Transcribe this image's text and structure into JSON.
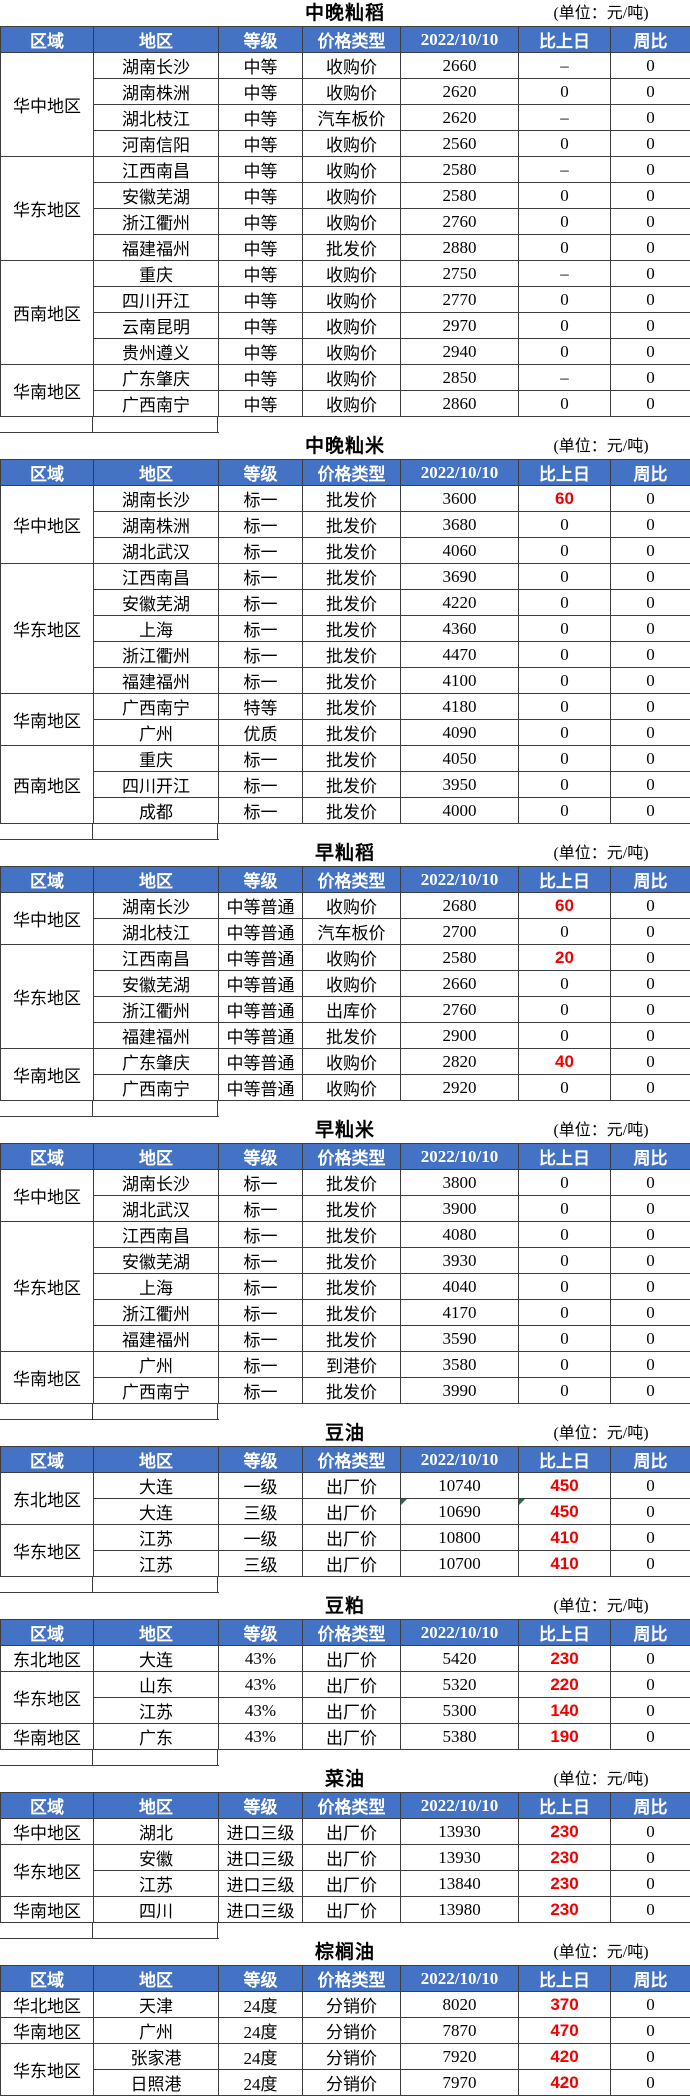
{
  "unit_label": "(单位：元/吨)",
  "columns": [
    "区域",
    "地区",
    "等级",
    "价格类型",
    "2022/10/10",
    "比上日",
    "周比"
  ],
  "colors": {
    "header_bg": "#4472C4",
    "header_text": "#FFFFFF",
    "change_up_red": "#F00000",
    "comment_marker_green": "#217346",
    "grid_border": "#3D3D3D"
  },
  "tables": [
    {
      "title": "中晚籼稻",
      "groups": [
        {
          "region": "华中地区",
          "rows": [
            {
              "area": "湖南长沙",
              "grade": "中等",
              "price_type": "收购价",
              "price": "2660",
              "chg": "–",
              "week": "0"
            },
            {
              "area": "湖南株洲",
              "grade": "中等",
              "price_type": "收购价",
              "price": "2620",
              "chg": "0",
              "week": "0"
            },
            {
              "area": "湖北枝江",
              "grade": "中等",
              "price_type": "汽车板价",
              "price": "2620",
              "chg": "–",
              "week": "0"
            },
            {
              "area": "河南信阳",
              "grade": "中等",
              "price_type": "收购价",
              "price": "2560",
              "chg": "0",
              "week": "0"
            }
          ]
        },
        {
          "region": "华东地区",
          "rows": [
            {
              "area": "江西南昌",
              "grade": "中等",
              "price_type": "收购价",
              "price": "2580",
              "chg": "–",
              "week": "0"
            },
            {
              "area": "安徽芜湖",
              "grade": "中等",
              "price_type": "收购价",
              "price": "2580",
              "chg": "0",
              "week": "0"
            },
            {
              "area": "浙江衢州",
              "grade": "中等",
              "price_type": "收购价",
              "price": "2760",
              "chg": "0",
              "week": "0"
            },
            {
              "area": "福建福州",
              "grade": "中等",
              "price_type": "批发价",
              "price": "2880",
              "chg": "0",
              "week": "0"
            }
          ]
        },
        {
          "region": "西南地区",
          "rows": [
            {
              "area": "重庆",
              "grade": "中等",
              "price_type": "收购价",
              "price": "2750",
              "chg": "–",
              "week": "0"
            },
            {
              "area": "四川开江",
              "grade": "中等",
              "price_type": "收购价",
              "price": "2770",
              "chg": "0",
              "week": "0"
            },
            {
              "area": "云南昆明",
              "grade": "中等",
              "price_type": "收购价",
              "price": "2970",
              "chg": "0",
              "week": "0"
            },
            {
              "area": "贵州遵义",
              "grade": "中等",
              "price_type": "收购价",
              "price": "2940",
              "chg": "0",
              "week": "0"
            }
          ]
        },
        {
          "region": "华南地区",
          "rows": [
            {
              "area": "广东肇庆",
              "grade": "中等",
              "price_type": "收购价",
              "price": "2850",
              "chg": "–",
              "week": "0"
            },
            {
              "area": "广西南宁",
              "grade": "中等",
              "price_type": "收购价",
              "price": "2860",
              "chg": "0",
              "week": "0"
            }
          ]
        }
      ]
    },
    {
      "title": "中晚籼米",
      "groups": [
        {
          "region": "华中地区",
          "rows": [
            {
              "area": "湖南长沙",
              "grade": "标一",
              "price_type": "批发价",
              "price": "3600",
              "chg": "60",
              "week": "0"
            },
            {
              "area": "湖南株洲",
              "grade": "标一",
              "price_type": "批发价",
              "price": "3680",
              "chg": "0",
              "week": "0"
            },
            {
              "area": "湖北武汉",
              "grade": "标一",
              "price_type": "批发价",
              "price": "4060",
              "chg": "0",
              "week": "0"
            }
          ]
        },
        {
          "region": "华东地区",
          "rows": [
            {
              "area": "江西南昌",
              "grade": "标一",
              "price_type": "批发价",
              "price": "3690",
              "chg": "0",
              "week": "0"
            },
            {
              "area": "安徽芜湖",
              "grade": "标一",
              "price_type": "批发价",
              "price": "4220",
              "chg": "0",
              "week": "0"
            },
            {
              "area": "上海",
              "grade": "标一",
              "price_type": "批发价",
              "price": "4360",
              "chg": "0",
              "week": "0"
            },
            {
              "area": "浙江衢州",
              "grade": "标一",
              "price_type": "批发价",
              "price": "4470",
              "chg": "0",
              "week": "0"
            },
            {
              "area": "福建福州",
              "grade": "标一",
              "price_type": "批发价",
              "price": "4100",
              "chg": "0",
              "week": "0"
            }
          ]
        },
        {
          "region": "华南地区",
          "rows": [
            {
              "area": "广西南宁",
              "grade": "特等",
              "price_type": "批发价",
              "price": "4180",
              "chg": "0",
              "week": "0"
            },
            {
              "area": "广州",
              "grade": "优质",
              "price_type": "批发价",
              "price": "4090",
              "chg": "0",
              "week": "0"
            }
          ]
        },
        {
          "region": "西南地区",
          "rows": [
            {
              "area": "重庆",
              "grade": "标一",
              "price_type": "批发价",
              "price": "4050",
              "chg": "0",
              "week": "0"
            },
            {
              "area": "四川开江",
              "grade": "标一",
              "price_type": "批发价",
              "price": "3950",
              "chg": "0",
              "week": "0"
            },
            {
              "area": "成都",
              "grade": "标一",
              "price_type": "批发价",
              "price": "4000",
              "chg": "0",
              "week": "0"
            }
          ]
        }
      ]
    },
    {
      "title": "早籼稻",
      "groups": [
        {
          "region": "华中地区",
          "rows": [
            {
              "area": "湖南长沙",
              "grade": "中等普通",
              "price_type": "收购价",
              "price": "2680",
              "chg": "60",
              "week": "0"
            },
            {
              "area": "湖北枝江",
              "grade": "中等普通",
              "price_type": "汽车板价",
              "price": "2700",
              "chg": "0",
              "week": "0"
            }
          ]
        },
        {
          "region": "华东地区",
          "rows": [
            {
              "area": "江西南昌",
              "grade": "中等普通",
              "price_type": "收购价",
              "price": "2580",
              "chg": "20",
              "week": "0"
            },
            {
              "area": "安徽芜湖",
              "grade": "中等普通",
              "price_type": "收购价",
              "price": "2660",
              "chg": "0",
              "week": "0"
            },
            {
              "area": "浙江衢州",
              "grade": "中等普通",
              "price_type": "出库价",
              "price": "2760",
              "chg": "0",
              "week": "0"
            },
            {
              "area": "福建福州",
              "grade": "中等普通",
              "price_type": "批发价",
              "price": "2900",
              "chg": "0",
              "week": "0"
            }
          ]
        },
        {
          "region": "华南地区",
          "rows": [
            {
              "area": "广东肇庆",
              "grade": "中等普通",
              "price_type": "收购价",
              "price": "2820",
              "chg": "40",
              "week": "0"
            },
            {
              "area": "广西南宁",
              "grade": "中等普通",
              "price_type": "收购价",
              "price": "2920",
              "chg": "0",
              "week": "0"
            }
          ]
        }
      ]
    },
    {
      "title": "早籼米",
      "groups": [
        {
          "region": "华中地区",
          "rows": [
            {
              "area": "湖南长沙",
              "grade": "标一",
              "price_type": "批发价",
              "price": "3800",
              "chg": "0",
              "week": "0"
            },
            {
              "area": "湖北武汉",
              "grade": "标一",
              "price_type": "批发价",
              "price": "3900",
              "chg": "0",
              "week": "0"
            }
          ]
        },
        {
          "region": "华东地区",
          "rows": [
            {
              "area": "江西南昌",
              "grade": "标一",
              "price_type": "批发价",
              "price": "4080",
              "chg": "0",
              "week": "0"
            },
            {
              "area": "安徽芜湖",
              "grade": "标一",
              "price_type": "批发价",
              "price": "3930",
              "chg": "0",
              "week": "0"
            },
            {
              "area": "上海",
              "grade": "标一",
              "price_type": "批发价",
              "price": "4040",
              "chg": "0",
              "week": "0"
            },
            {
              "area": "浙江衢州",
              "grade": "标一",
              "price_type": "批发价",
              "price": "4170",
              "chg": "0",
              "week": "0"
            },
            {
              "area": "福建福州",
              "grade": "标一",
              "price_type": "批发价",
              "price": "3590",
              "chg": "0",
              "week": "0"
            }
          ]
        },
        {
          "region": "华南地区",
          "rows": [
            {
              "area": "广州",
              "grade": "标一",
              "price_type": "到港价",
              "price": "3580",
              "chg": "0",
              "week": "0"
            },
            {
              "area": "广西南宁",
              "grade": "标一",
              "price_type": "批发价",
              "price": "3990",
              "chg": "0",
              "week": "0"
            }
          ]
        }
      ]
    },
    {
      "title": "豆油",
      "groups": [
        {
          "region": "东北地区",
          "rows": [
            {
              "area": "大连",
              "grade": "一级",
              "price_type": "出厂价",
              "price": "10740",
              "chg": "450",
              "week": "0"
            },
            {
              "area": "大连",
              "grade": "三级",
              "price_type": "出厂价",
              "price": "10690",
              "chg": "450",
              "week": "0",
              "price_note": true,
              "chg_note": true
            }
          ]
        },
        {
          "region": "华东地区",
          "rows": [
            {
              "area": "江苏",
              "grade": "一级",
              "price_type": "出厂价",
              "price": "10800",
              "chg": "410",
              "week": "0"
            },
            {
              "area": "江苏",
              "grade": "三级",
              "price_type": "出厂价",
              "price": "10700",
              "chg": "410",
              "week": "0"
            }
          ]
        }
      ]
    },
    {
      "title": "豆粕",
      "groups": [
        {
          "region": "东北地区",
          "rows": [
            {
              "area": "大连",
              "grade": "43%",
              "price_type": "出厂价",
              "price": "5420",
              "chg": "230",
              "week": "0"
            }
          ]
        },
        {
          "region": "华东地区",
          "rows": [
            {
              "area": "山东",
              "grade": "43%",
              "price_type": "出厂价",
              "price": "5320",
              "chg": "220",
              "week": "0"
            },
            {
              "area": "江苏",
              "grade": "43%",
              "price_type": "出厂价",
              "price": "5300",
              "chg": "140",
              "week": "0"
            }
          ]
        },
        {
          "region": "华南地区",
          "rows": [
            {
              "area": "广东",
              "grade": "43%",
              "price_type": "出厂价",
              "price": "5380",
              "chg": "190",
              "week": "0"
            }
          ]
        }
      ]
    },
    {
      "title": "菜油",
      "groups": [
        {
          "region": "华中地区",
          "rows": [
            {
              "area": "湖北",
              "grade": "进口三级",
              "price_type": "出厂价",
              "price": "13930",
              "chg": "230",
              "week": "0"
            }
          ]
        },
        {
          "region": "华东地区",
          "rows": [
            {
              "area": "安徽",
              "grade": "进口三级",
              "price_type": "出厂价",
              "price": "13930",
              "chg": "230",
              "week": "0"
            },
            {
              "area": "江苏",
              "grade": "进口三级",
              "price_type": "出厂价",
              "price": "13840",
              "chg": "230",
              "week": "0"
            }
          ]
        },
        {
          "region": "华南地区",
          "rows": [
            {
              "area": "四川",
              "grade": "进口三级",
              "price_type": "出厂价",
              "price": "13980",
              "chg": "230",
              "week": "0"
            }
          ]
        }
      ]
    },
    {
      "title": "棕榈油",
      "groups": [
        {
          "region": "华北地区",
          "rows": [
            {
              "area": "天津",
              "grade": "24度",
              "price_type": "分销价",
              "price": "8020",
              "chg": "370",
              "week": "0"
            }
          ]
        },
        {
          "region": "华南地区",
          "rows": [
            {
              "area": "广州",
              "grade": "24度",
              "price_type": "分销价",
              "price": "7870",
              "chg": "470",
              "week": "0"
            }
          ]
        },
        {
          "region": "华东地区",
          "rows": [
            {
              "area": "张家港",
              "grade": "24度",
              "price_type": "分销价",
              "price": "7920",
              "chg": "420",
              "week": "0"
            },
            {
              "area": "日照港",
              "grade": "24度",
              "price_type": "分销价",
              "price": "7970",
              "chg": "420",
              "week": "0"
            }
          ]
        }
      ]
    }
  ]
}
